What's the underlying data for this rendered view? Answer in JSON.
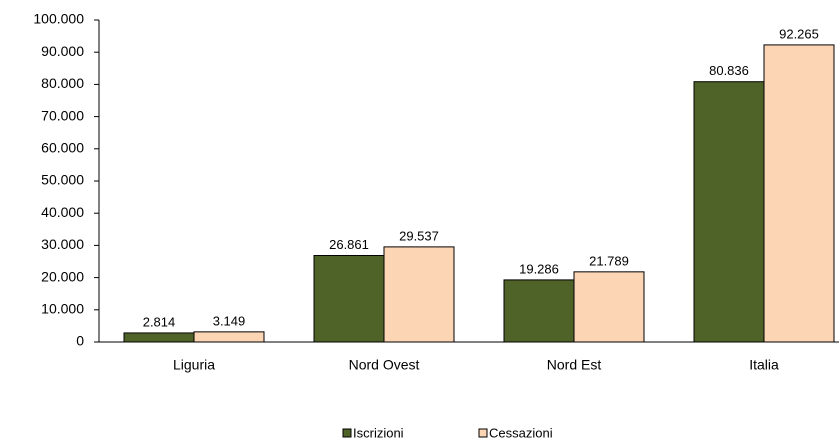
{
  "chart_data": {
    "type": "bar",
    "categories": [
      "Liguria",
      "Nord Ovest",
      "Nord Est",
      "Italia"
    ],
    "series": [
      {
        "name": "Iscrizioni",
        "color": "#4f6228",
        "values": [
          2814,
          26861,
          19286,
          80836
        ],
        "value_labels": [
          "2.814",
          "26.861",
          "19.286",
          "80.836"
        ]
      },
      {
        "name": "Cessazioni",
        "color": "#fcd5b5",
        "values": [
          3149,
          29537,
          21789,
          92265
        ],
        "value_labels": [
          "3.149",
          "29.537",
          "21.789",
          "92.265"
        ]
      }
    ],
    "ylim": [
      0,
      100000
    ],
    "yticks": [
      0,
      {
        "value": 10000,
        "label": "10.000"
      },
      {
        "value": 20000,
        "label": "20.000"
      },
      {
        "value": 30000,
        "label": "30.000"
      },
      {
        "value": 40000,
        "label": "40.000"
      },
      {
        "value": 50000,
        "label": "50.000"
      },
      {
        "value": 60000,
        "label": "60.000"
      },
      {
        "value": 70000,
        "label": "70.000"
      },
      {
        "value": 80000,
        "label": "80.000"
      },
      {
        "value": 90000,
        "label": "90.000"
      },
      {
        "value": 100000,
        "label": "100.000"
      }
    ],
    "grid": false,
    "legend": "bottom"
  }
}
